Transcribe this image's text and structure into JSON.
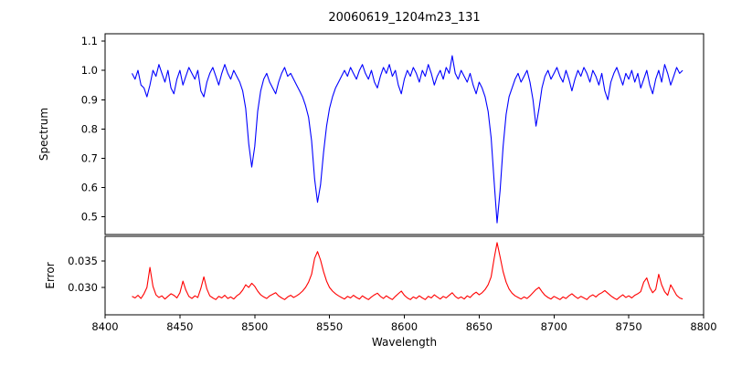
{
  "title": "20060619_1204m23_131",
  "chart_data": {
    "type": "line",
    "title": "20060619_1204m23_131",
    "xlabel": "Wavelength",
    "xlim": [
      8400,
      8800
    ],
    "xticks": [
      8400,
      8450,
      8500,
      8550,
      8600,
      8650,
      8700,
      8750,
      8800
    ],
    "xtick_labels": [
      "8400",
      "8450",
      "8500",
      "8550",
      "8600",
      "8650",
      "8700",
      "8750",
      "8800"
    ],
    "grid": false,
    "legend": "none",
    "panels": [
      {
        "name": "spectrum",
        "ylabel": "Spectrum",
        "color": "#0000ff",
        "ylim": [
          0.44,
          1.125
        ],
        "yticks": [
          0.5,
          0.6,
          0.7,
          0.8,
          0.9,
          1.0,
          1.1
        ],
        "ytick_labels": [
          "0.5",
          "0.6",
          "0.7",
          "0.8",
          "0.9",
          "1.0",
          "1.1"
        ],
        "absorption_lines": [
          {
            "center": 8498,
            "depth": 0.67
          },
          {
            "center": 8542,
            "depth": 0.55
          },
          {
            "center": 8662,
            "depth": 0.48
          },
          {
            "center": 8688,
            "depth": 0.81
          }
        ],
        "x_start": 8418,
        "x_step": 2,
        "values": [
          0.99,
          0.97,
          1.0,
          0.95,
          0.94,
          0.91,
          0.95,
          1.0,
          0.98,
          1.02,
          0.99,
          0.96,
          1.0,
          0.94,
          0.92,
          0.97,
          1.0,
          0.95,
          0.98,
          1.01,
          0.99,
          0.97,
          1.0,
          0.93,
          0.91,
          0.96,
          0.99,
          1.01,
          0.98,
          0.95,
          0.99,
          1.02,
          0.99,
          0.97,
          1.0,
          0.98,
          0.96,
          0.93,
          0.87,
          0.75,
          0.67,
          0.74,
          0.86,
          0.93,
          0.97,
          0.99,
          0.96,
          0.94,
          0.92,
          0.96,
          0.99,
          1.01,
          0.98,
          0.99,
          0.97,
          0.95,
          0.93,
          0.91,
          0.88,
          0.84,
          0.76,
          0.63,
          0.55,
          0.61,
          0.72,
          0.81,
          0.87,
          0.91,
          0.94,
          0.96,
          0.98,
          1.0,
          0.98,
          1.01,
          0.99,
          0.97,
          1.0,
          1.02,
          0.99,
          0.97,
          1.0,
          0.96,
          0.94,
          0.98,
          1.01,
          0.99,
          1.02,
          0.98,
          1.0,
          0.95,
          0.92,
          0.97,
          1.0,
          0.98,
          1.01,
          0.99,
          0.96,
          1.0,
          0.98,
          1.02,
          0.99,
          0.95,
          0.98,
          1.0,
          0.97,
          1.01,
          0.99,
          1.05,
          0.99,
          0.97,
          1.0,
          0.98,
          0.96,
          0.99,
          0.95,
          0.92,
          0.96,
          0.94,
          0.91,
          0.86,
          0.77,
          0.62,
          0.48,
          0.59,
          0.74,
          0.85,
          0.91,
          0.94,
          0.97,
          0.99,
          0.96,
          0.98,
          1.0,
          0.96,
          0.9,
          0.81,
          0.87,
          0.94,
          0.98,
          1.0,
          0.97,
          0.99,
          1.01,
          0.98,
          0.96,
          1.0,
          0.97,
          0.93,
          0.97,
          1.0,
          0.98,
          1.01,
          0.99,
          0.96,
          1.0,
          0.98,
          0.95,
          0.99,
          0.93,
          0.9,
          0.96,
          0.99,
          1.01,
          0.98,
          0.95,
          0.99,
          0.97,
          1.0,
          0.96,
          0.99,
          0.94,
          0.97,
          1.0,
          0.95,
          0.92,
          0.97,
          1.0,
          0.96,
          1.02,
          0.99,
          0.95,
          0.98,
          1.01,
          0.99,
          1.0
        ]
      },
      {
        "name": "error",
        "ylabel": "Error",
        "color": "#ff0000",
        "ylim": [
          0.0248,
          0.0397
        ],
        "yticks": [
          0.03,
          0.035
        ],
        "ytick_labels": [
          "0.030",
          "0.035"
        ],
        "x_start": 8418,
        "x_step": 2,
        "values": [
          0.0283,
          0.028,
          0.0285,
          0.0279,
          0.0288,
          0.03,
          0.0338,
          0.0302,
          0.0286,
          0.0281,
          0.0284,
          0.0278,
          0.0283,
          0.0288,
          0.0285,
          0.028,
          0.029,
          0.0312,
          0.0295,
          0.0283,
          0.0279,
          0.0284,
          0.0281,
          0.0298,
          0.032,
          0.0297,
          0.0284,
          0.028,
          0.0277,
          0.0283,
          0.028,
          0.0285,
          0.0279,
          0.0282,
          0.0278,
          0.0284,
          0.0288,
          0.0295,
          0.0305,
          0.03,
          0.0308,
          0.0302,
          0.0293,
          0.0286,
          0.0282,
          0.0279,
          0.0284,
          0.0287,
          0.029,
          0.0284,
          0.028,
          0.0277,
          0.0282,
          0.0285,
          0.0281,
          0.0284,
          0.0288,
          0.0293,
          0.03,
          0.031,
          0.0325,
          0.0355,
          0.0368,
          0.0352,
          0.033,
          0.0312,
          0.03,
          0.0293,
          0.0288,
          0.0284,
          0.0281,
          0.0278,
          0.0283,
          0.028,
          0.0285,
          0.0281,
          0.0278,
          0.0284,
          0.028,
          0.0277,
          0.0282,
          0.0286,
          0.0289,
          0.0283,
          0.0279,
          0.0284,
          0.028,
          0.0277,
          0.0283,
          0.0288,
          0.0293,
          0.0285,
          0.028,
          0.0277,
          0.0282,
          0.0279,
          0.0284,
          0.028,
          0.0277,
          0.0283,
          0.028,
          0.0286,
          0.0282,
          0.0278,
          0.0283,
          0.028,
          0.0285,
          0.029,
          0.0283,
          0.0279,
          0.0282,
          0.0278,
          0.0284,
          0.0281,
          0.0287,
          0.0291,
          0.0286,
          0.029,
          0.0296,
          0.0305,
          0.032,
          0.0355,
          0.0385,
          0.0358,
          0.033,
          0.031,
          0.0297,
          0.0289,
          0.0284,
          0.0281,
          0.0278,
          0.0282,
          0.0279,
          0.0284,
          0.029,
          0.0296,
          0.03,
          0.0292,
          0.0285,
          0.0281,
          0.0278,
          0.0283,
          0.028,
          0.0277,
          0.0282,
          0.0279,
          0.0284,
          0.0288,
          0.0283,
          0.0279,
          0.0283,
          0.028,
          0.0277,
          0.0283,
          0.0286,
          0.0282,
          0.0287,
          0.029,
          0.0294,
          0.0289,
          0.0284,
          0.028,
          0.0277,
          0.0282,
          0.0286,
          0.0281,
          0.0284,
          0.028,
          0.0285,
          0.0288,
          0.0292,
          0.031,
          0.0318,
          0.03,
          0.029,
          0.0296,
          0.0325,
          0.0305,
          0.0292,
          0.0285,
          0.0305,
          0.0295,
          0.0285,
          0.028,
          0.0278
        ]
      }
    ]
  }
}
